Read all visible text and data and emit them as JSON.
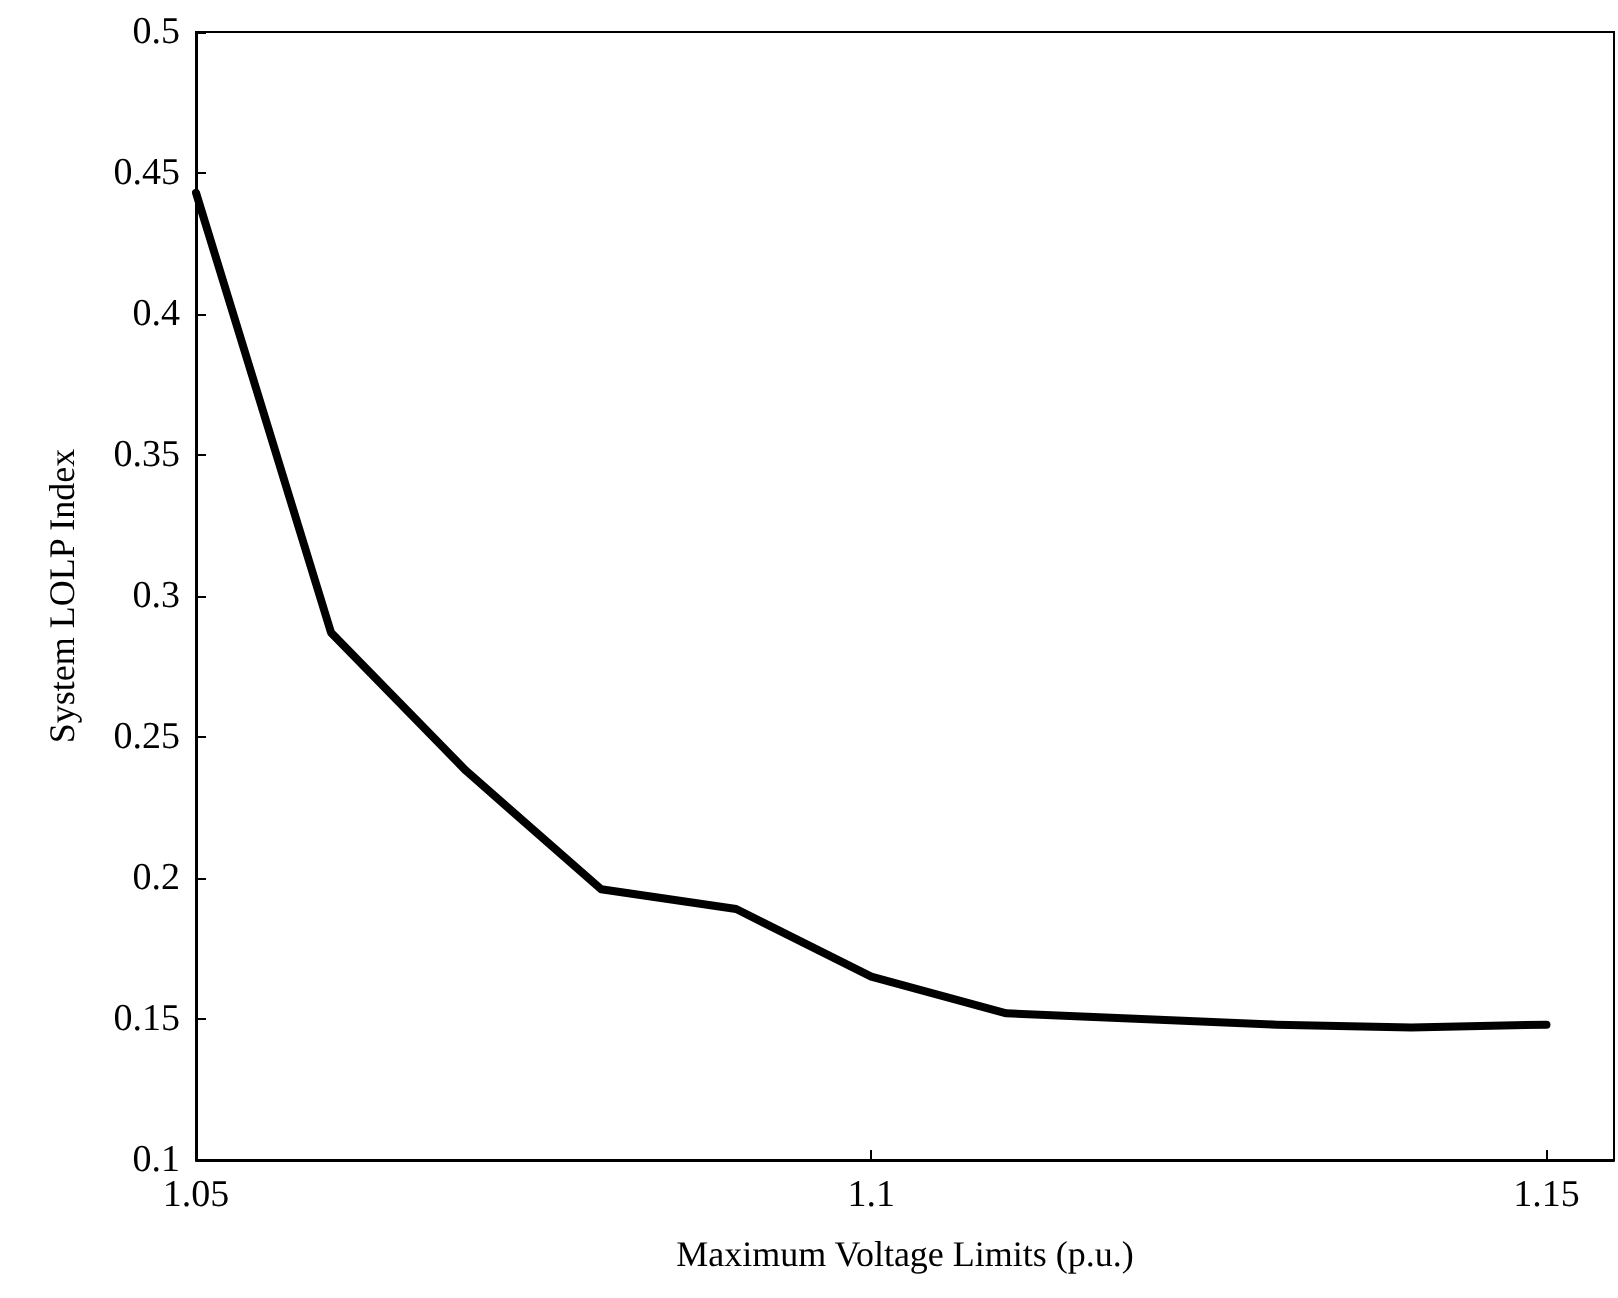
{
  "chart_data": {
    "type": "line",
    "xlabel": "Maximum Voltage Limits (p.u.)",
    "ylabel": "System LOLP Index",
    "x": [
      1.05,
      1.06,
      1.07,
      1.08,
      1.09,
      1.1,
      1.11,
      1.12,
      1.13,
      1.14,
      1.15
    ],
    "series": [
      {
        "color": "#000000",
        "values": [
          0.443,
          0.287,
          0.238,
          0.196,
          0.189,
          0.165,
          0.152,
          0.15,
          0.148,
          0.147,
          0.148
        ]
      }
    ],
    "xlim": [
      1.05,
      1.155
    ],
    "xticks": [
      1.05,
      1.1,
      1.15
    ],
    "ylim": [
      0.1,
      0.5
    ],
    "yticks": [
      0.1,
      0.15,
      0.2,
      0.25,
      0.3,
      0.35,
      0.4,
      0.45,
      0.5
    ],
    "marker": "none",
    "line_style": "solid"
  }
}
